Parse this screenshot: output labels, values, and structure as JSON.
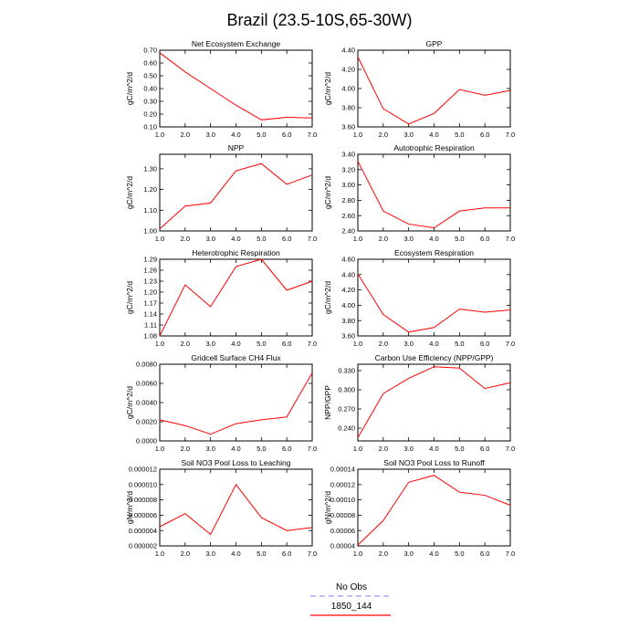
{
  "page_title": "Brazil (23.5-10S,65-30W)",
  "legend": {
    "entries": [
      {
        "label": "No Obs",
        "color": "#9999ff",
        "dash": true
      },
      {
        "label": "1850_144",
        "color": "#ff0000",
        "dash": false
      }
    ]
  },
  "chart_data": [
    {
      "type": "line",
      "title": "Net Ecosystem Exchange",
      "ylabel": "gC/m^2/d",
      "xlim": [
        1,
        7
      ],
      "ylim": [
        0.1,
        0.7
      ],
      "xticks": [
        1,
        2,
        3,
        4,
        5,
        6,
        7
      ],
      "xdec": 1,
      "yticks": [
        0.1,
        0.2,
        0.3,
        0.4,
        0.5,
        0.6,
        0.7
      ],
      "ydec": 2,
      "series": [
        {
          "color": "#ff0000",
          "x": [
            1,
            2,
            3,
            4,
            5,
            6,
            7
          ],
          "y": [
            0.68,
            0.53,
            0.4,
            0.27,
            0.155,
            0.175,
            0.17
          ]
        }
      ]
    },
    {
      "type": "line",
      "title": "GPP",
      "ylabel": "gC/m^2/d",
      "xlim": [
        1,
        7
      ],
      "ylim": [
        3.6,
        4.4
      ],
      "xticks": [
        1,
        2,
        3,
        4,
        5,
        6,
        7
      ],
      "xdec": 1,
      "yticks": [
        3.6,
        3.8,
        4.0,
        4.2,
        4.4
      ],
      "ydec": 2,
      "series": [
        {
          "color": "#ff0000",
          "x": [
            1,
            2,
            3,
            4,
            5,
            6,
            7
          ],
          "y": [
            4.33,
            3.79,
            3.63,
            3.74,
            3.99,
            3.93,
            3.98
          ]
        }
      ]
    },
    {
      "type": "line",
      "title": "NPP",
      "ylabel": "gC/m^2/d",
      "xlim": [
        1,
        7
      ],
      "ylim": [
        1.0,
        1.37
      ],
      "xticks": [
        1,
        2,
        3,
        4,
        5,
        6,
        7
      ],
      "xdec": 1,
      "yticks": [
        1.0,
        1.1,
        1.2,
        1.3
      ],
      "ydec": 2,
      "series": [
        {
          "color": "#ff0000",
          "x": [
            1,
            2,
            3,
            4,
            5,
            6,
            7
          ],
          "y": [
            1.01,
            1.12,
            1.135,
            1.29,
            1.325,
            1.225,
            1.27
          ]
        }
      ]
    },
    {
      "type": "line",
      "title": "Autotrophic Respiration",
      "ylabel": "gC/m^2/d",
      "xlim": [
        1,
        7
      ],
      "ylim": [
        2.4,
        3.4
      ],
      "xticks": [
        1,
        2,
        3,
        4,
        5,
        6,
        7
      ],
      "xdec": 1,
      "yticks": [
        2.4,
        2.6,
        2.8,
        3.0,
        3.2,
        3.4
      ],
      "ydec": 2,
      "series": [
        {
          "color": "#ff0000",
          "x": [
            1,
            2,
            3,
            4,
            5,
            6,
            7
          ],
          "y": [
            3.31,
            2.66,
            2.49,
            2.44,
            2.66,
            2.7,
            2.7
          ]
        }
      ]
    },
    {
      "type": "line",
      "title": "Heterotrophic Respiration",
      "ylabel": "gC/m^2/d",
      "xlim": [
        1,
        7
      ],
      "ylim": [
        1.08,
        1.29
      ],
      "xticks": [
        1,
        2,
        3,
        4,
        5,
        6,
        7
      ],
      "xdec": 1,
      "yticks": [
        1.08,
        1.11,
        1.14,
        1.17,
        1.2,
        1.23,
        1.26,
        1.29
      ],
      "ydec": 2,
      "series": [
        {
          "color": "#ff0000",
          "x": [
            1,
            2,
            3,
            4,
            5,
            6,
            7
          ],
          "y": [
            1.08,
            1.22,
            1.16,
            1.27,
            1.29,
            1.205,
            1.23
          ]
        }
      ]
    },
    {
      "type": "line",
      "title": "Ecosystem Respiration",
      "ylabel": "gC/m^2/d",
      "xlim": [
        1,
        7
      ],
      "ylim": [
        3.6,
        4.6
      ],
      "xticks": [
        1,
        2,
        3,
        4,
        5,
        6,
        7
      ],
      "xdec": 1,
      "yticks": [
        3.6,
        3.8,
        4.0,
        4.2,
        4.4,
        4.6
      ],
      "ydec": 2,
      "series": [
        {
          "color": "#ff0000",
          "x": [
            1,
            2,
            3,
            4,
            5,
            6,
            7
          ],
          "y": [
            4.41,
            3.88,
            3.65,
            3.71,
            3.95,
            3.91,
            3.94
          ]
        }
      ]
    },
    {
      "type": "line",
      "title": "Gridcell Surface CH4 Flux",
      "ylabel": "gC/m^2/d",
      "xlim": [
        1,
        7
      ],
      "ylim": [
        0,
        0.008
      ],
      "xticks": [
        1,
        2,
        3,
        4,
        5,
        6,
        7
      ],
      "xdec": 1,
      "yticks": [
        0,
        0.002,
        0.004,
        0.006,
        0.008
      ],
      "ydec": 4,
      "series": [
        {
          "color": "#ff0000",
          "x": [
            1,
            2,
            3,
            4,
            5,
            6,
            7
          ],
          "y": [
            0.0022,
            0.0016,
            0.0007,
            0.0018,
            0.0022,
            0.0025,
            0.0071
          ]
        }
      ]
    },
    {
      "type": "line",
      "title": "Carbon Use Efficiency (NPP/GPP)",
      "ylabel": "NPP/GPP",
      "xlim": [
        1,
        7
      ],
      "ylim": [
        0.22,
        0.34
      ],
      "xticks": [
        1,
        2,
        3,
        4,
        5,
        6,
        7
      ],
      "xdec": 1,
      "yticks": [
        0.24,
        0.27,
        0.3,
        0.33
      ],
      "ydec": 3,
      "series": [
        {
          "color": "#ff0000",
          "x": [
            1,
            2,
            3,
            4,
            5,
            6,
            7
          ],
          "y": [
            0.225,
            0.294,
            0.318,
            0.336,
            0.334,
            0.302,
            0.311
          ]
        }
      ]
    },
    {
      "type": "line",
      "title": "Soil NO3 Pool Loss to Leaching",
      "ylabel": "gN/m^2/d",
      "xlim": [
        1,
        7
      ],
      "ylim": [
        2e-06,
        1.2e-05
      ],
      "xticks": [
        1,
        2,
        3,
        4,
        5,
        6,
        7
      ],
      "xdec": 1,
      "yticks": [
        2e-06,
        4e-06,
        6e-06,
        8e-06,
        1e-05,
        1.2e-05
      ],
      "ydec": 6,
      "series": [
        {
          "color": "#ff0000",
          "x": [
            1,
            2,
            3,
            4,
            5,
            6,
            7
          ],
          "y": [
            4.5e-06,
            6.2e-06,
            3.5e-06,
            1e-05,
            5.7e-06,
            4e-06,
            4.4e-06
          ]
        }
      ]
    },
    {
      "type": "line",
      "title": "Soil NO3 Pool Loss to Runoff",
      "ylabel": "gN/m^2/d",
      "xlim": [
        1,
        7
      ],
      "ylim": [
        4e-05,
        0.00014
      ],
      "xticks": [
        1,
        2,
        3,
        4,
        5,
        6,
        7
      ],
      "xdec": 1,
      "yticks": [
        4e-05,
        6e-05,
        8e-05,
        0.0001,
        0.00012,
        0.00014
      ],
      "ydec": 5,
      "series": [
        {
          "color": "#ff0000",
          "x": [
            1,
            2,
            3,
            4,
            5,
            6,
            7
          ],
          "y": [
            4.1e-05,
            7.3e-05,
            0.000123,
            0.000132,
            0.00011,
            0.000106,
            9.3e-05
          ]
        }
      ]
    }
  ]
}
